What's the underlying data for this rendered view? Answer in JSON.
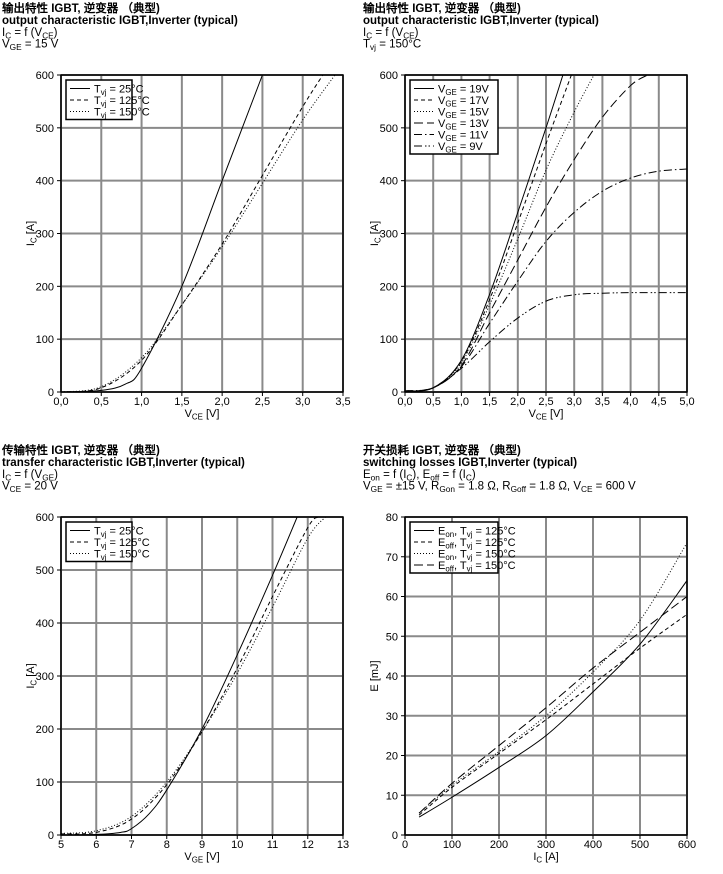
{
  "chart_data": [
    {
      "type": "line",
      "title": "输出特性 IGBT, 逆变器 （典型)",
      "subtitle": "output characteristic IGBT,Inverter (typical)",
      "conditions": [
        [
          "I",
          "C",
          " = f (V",
          "CE",
          ")"
        ],
        [
          "V",
          "GE",
          " = 15 V"
        ]
      ],
      "xlabel": [
        "V",
        "CE",
        " [V]"
      ],
      "ylabel": [
        "I",
        "C",
        " [A]"
      ],
      "xlim": [
        0,
        3.5
      ],
      "ylim": [
        0,
        600
      ],
      "xticks": [
        0,
        0.5,
        1,
        1.5,
        2,
        2.5,
        3,
        3.5
      ],
      "xtick_labels": [
        "0,0",
        "0,5",
        "1,0",
        "1,5",
        "2,0",
        "2,5",
        "3,0",
        "3,5"
      ],
      "yticks": [
        0,
        100,
        200,
        300,
        400,
        500,
        600
      ],
      "ytick_labels": [
        "0",
        "100",
        "200",
        "300",
        "400",
        "500",
        "600"
      ],
      "grid": true,
      "legend_position": "top-left",
      "series": [
        {
          "name": [
            "T",
            "vj",
            " = 25°C"
          ],
          "style": "solid",
          "points": [
            [
              0,
              0
            ],
            [
              0.5,
              3
            ],
            [
              0.8,
              15
            ],
            [
              1,
              45
            ],
            [
              1.5,
              200
            ],
            [
              2,
              400
            ],
            [
              2.5,
              600
            ]
          ]
        },
        {
          "name": [
            "T",
            "vj",
            " = 125°C"
          ],
          "style": "dashed",
          "points": [
            [
              0,
              0
            ],
            [
              0.5,
              8
            ],
            [
              1,
              60
            ],
            [
              1.5,
              165
            ],
            [
              2,
              280
            ],
            [
              2.5,
              410
            ],
            [
              3,
              540
            ],
            [
              3.25,
              600
            ]
          ]
        },
        {
          "name": [
            "T",
            "vj",
            " = 150°C"
          ],
          "style": "dotted",
          "points": [
            [
              0,
              0
            ],
            [
              0.5,
              10
            ],
            [
              1,
              65
            ],
            [
              1.5,
              165
            ],
            [
              2,
              275
            ],
            [
              2.5,
              395
            ],
            [
              3,
              515
            ],
            [
              3.4,
              600
            ]
          ]
        }
      ]
    },
    {
      "type": "line",
      "title": "输出特性 IGBT, 逆变器 （典型)",
      "subtitle": "output characteristic IGBT,Inverter (typical)",
      "conditions": [
        [
          "I",
          "C",
          " = f (V",
          "CE",
          ")"
        ],
        [
          "T",
          "vj",
          " = 150°C"
        ]
      ],
      "xlabel": [
        "V",
        "CE",
        " [V]"
      ],
      "ylabel": [
        "I",
        "C",
        " [A]"
      ],
      "xlim": [
        0,
        5
      ],
      "ylim": [
        0,
        600
      ],
      "xticks": [
        0,
        0.5,
        1,
        1.5,
        2,
        2.5,
        3,
        3.5,
        4,
        4.5,
        5
      ],
      "xtick_labels": [
        "0,0",
        "0,5",
        "1,0",
        "1,5",
        "2,0",
        "2,5",
        "3,0",
        "3,5",
        "4,0",
        "4,5",
        "5,0"
      ],
      "yticks": [
        0,
        100,
        200,
        300,
        400,
        500,
        600
      ],
      "ytick_labels": [
        "0",
        "100",
        "200",
        "300",
        "400",
        "500",
        "600"
      ],
      "grid": true,
      "legend_position": "top-left",
      "series": [
        {
          "name": [
            "V",
            "GE",
            " = 19V"
          ],
          "style": "solid",
          "points": [
            [
              0,
              2
            ],
            [
              0.5,
              8
            ],
            [
              1,
              60
            ],
            [
              1.5,
              185
            ],
            [
              2,
              340
            ],
            [
              2.5,
              500
            ],
            [
              2.8,
              600
            ]
          ]
        },
        {
          "name": [
            "V",
            "GE",
            " = 17V"
          ],
          "style": "dashed",
          "points": [
            [
              0,
              2
            ],
            [
              0.5,
              8
            ],
            [
              1,
              58
            ],
            [
              1.5,
              175
            ],
            [
              2,
              320
            ],
            [
              2.5,
              470
            ],
            [
              2.95,
              600
            ]
          ]
        },
        {
          "name": [
            "V",
            "GE",
            " = 15V"
          ],
          "style": "dotted",
          "points": [
            [
              0,
              2
            ],
            [
              0.5,
              8
            ],
            [
              1,
              55
            ],
            [
              1.5,
              165
            ],
            [
              2,
              290
            ],
            [
              2.5,
              420
            ],
            [
              3,
              530
            ],
            [
              3.35,
              600
            ]
          ]
        },
        {
          "name": [
            "V",
            "GE",
            " = 13V"
          ],
          "style": "longdash",
          "points": [
            [
              0,
              2
            ],
            [
              0.5,
              8
            ],
            [
              1,
              50
            ],
            [
              1.5,
              150
            ],
            [
              2,
              250
            ],
            [
              2.5,
              350
            ],
            [
              3,
              440
            ],
            [
              3.5,
              520
            ],
            [
              4,
              580
            ],
            [
              4.3,
              600
            ]
          ]
        },
        {
          "name": [
            "V",
            "GE",
            " = 11V"
          ],
          "style": "dashdot",
          "points": [
            [
              0,
              2
            ],
            [
              0.5,
              8
            ],
            [
              1,
              48
            ],
            [
              1.5,
              130
            ],
            [
              2,
              210
            ],
            [
              2.5,
              285
            ],
            [
              3,
              340
            ],
            [
              3.5,
              380
            ],
            [
              4,
              405
            ],
            [
              4.5,
              418
            ],
            [
              5,
              422
            ]
          ]
        },
        {
          "name": [
            "V",
            "GE",
            " = 9V"
          ],
          "style": "dashdotdot",
          "points": [
            [
              0,
              2
            ],
            [
              0.5,
              8
            ],
            [
              1,
              45
            ],
            [
              1.5,
              95
            ],
            [
              2,
              140
            ],
            [
              2.5,
              172
            ],
            [
              3,
              184
            ],
            [
              3.5,
              187
            ],
            [
              4,
              188
            ],
            [
              5,
              188
            ]
          ]
        }
      ]
    },
    {
      "type": "line",
      "title": "传输特性 IGBT, 逆变器 （典型)",
      "subtitle": "transfer characteristic IGBT,Inverter (typical)",
      "conditions": [
        [
          "I",
          "C",
          " = f (V",
          "GE",
          ")"
        ],
        [
          "V",
          "CE",
          " = 20 V"
        ]
      ],
      "xlabel": [
        "V",
        "GE",
        " [V]"
      ],
      "ylabel": [
        "I",
        "C",
        " [A]"
      ],
      "xlim": [
        5,
        13
      ],
      "ylim": [
        0,
        600
      ],
      "xticks": [
        5,
        6,
        7,
        8,
        9,
        10,
        11,
        12,
        13
      ],
      "xtick_labels": [
        "5",
        "6",
        "7",
        "8",
        "9",
        "10",
        "11",
        "12",
        "13"
      ],
      "yticks": [
        0,
        100,
        200,
        300,
        400,
        500,
        600
      ],
      "ytick_labels": [
        "0",
        "100",
        "200",
        "300",
        "400",
        "500",
        "600"
      ],
      "grid": true,
      "legend_position": "top-left",
      "series": [
        {
          "name": [
            "T",
            "vj",
            " = 25°C"
          ],
          "style": "solid",
          "points": [
            [
              5,
              0
            ],
            [
              6,
              1
            ],
            [
              6.7,
              5
            ],
            [
              7,
              12
            ],
            [
              7.5,
              40
            ],
            [
              8,
              85
            ],
            [
              9,
              200
            ],
            [
              10,
              340
            ],
            [
              11,
              490
            ],
            [
              11.7,
              600
            ]
          ]
        },
        {
          "name": [
            "T",
            "vj",
            " = 125°C"
          ],
          "style": "dashed",
          "points": [
            [
              5,
              2
            ],
            [
              6,
              5
            ],
            [
              7,
              30
            ],
            [
              8,
              95
            ],
            [
              9,
              195
            ],
            [
              10,
              315
            ],
            [
              11,
              450
            ],
            [
              12,
              580
            ],
            [
              12.3,
              600
            ]
          ]
        },
        {
          "name": [
            "T",
            "vj",
            " = 150°C"
          ],
          "style": "dotted",
          "points": [
            [
              5,
              3
            ],
            [
              6,
              8
            ],
            [
              7,
              35
            ],
            [
              8,
              100
            ],
            [
              9,
              195
            ],
            [
              10,
              305
            ],
            [
              11,
              430
            ],
            [
              12,
              560
            ],
            [
              12.5,
              600
            ]
          ]
        }
      ]
    },
    {
      "type": "line",
      "title": "开关损耗 IGBT, 逆变器 （典型)",
      "subtitle": "switching losses IGBT,Inverter (typical)",
      "conditions": [
        [
          "E",
          "on",
          " = f (I",
          "C",
          "), E",
          "off",
          " = f (I",
          "C",
          ")"
        ],
        [
          "V",
          "GE",
          " = ±15 V, R",
          "Gon",
          " = 1.8 Ω, R",
          "Goff",
          " = 1.8 Ω, V",
          "CE",
          " = 600 V"
        ]
      ],
      "xlabel": [
        "I",
        "C",
        " [A]"
      ],
      "ylabel": [
        "E [mJ]"
      ],
      "xlim": [
        0,
        600
      ],
      "ylim": [
        0,
        80
      ],
      "xticks": [
        0,
        100,
        200,
        300,
        400,
        500,
        600
      ],
      "xtick_labels": [
        "0",
        "100",
        "200",
        "300",
        "400",
        "500",
        "600"
      ],
      "yticks": [
        0,
        10,
        20,
        30,
        40,
        50,
        60,
        70,
        80
      ],
      "ytick_labels": [
        "0",
        "10",
        "20",
        "30",
        "40",
        "50",
        "60",
        "70",
        "80"
      ],
      "grid": true,
      "legend_position": "top-left",
      "series": [
        {
          "name": [
            "E",
            "on",
            ", T",
            "vj",
            " = 125°C"
          ],
          "style": "solid",
          "points": [
            [
              30,
              4.5
            ],
            [
              100,
              9.5
            ],
            [
              200,
              17
            ],
            [
              300,
              25
            ],
            [
              400,
              36
            ],
            [
              500,
              48
            ],
            [
              600,
              64
            ]
          ]
        },
        {
          "name": [
            "E",
            "off",
            ", T",
            "vj",
            " = 125°C"
          ],
          "style": "dashed",
          "points": [
            [
              30,
              5
            ],
            [
              100,
              12
            ],
            [
              200,
              20.5
            ],
            [
              300,
              29
            ],
            [
              400,
              38
            ],
            [
              500,
              47
            ],
            [
              600,
              55.5
            ]
          ]
        },
        {
          "name": [
            "E",
            "on",
            ", T",
            "vj",
            " = 150°C"
          ],
          "style": "dotted",
          "points": [
            [
              30,
              5.5
            ],
            [
              100,
              12.5
            ],
            [
              200,
              21
            ],
            [
              300,
              30
            ],
            [
              400,
              41
            ],
            [
              500,
              54
            ],
            [
              600,
              73.5
            ]
          ]
        },
        {
          "name": [
            "E",
            "off",
            ", T",
            "vj",
            " = 150°C"
          ],
          "style": "longdash",
          "points": [
            [
              30,
              5.5
            ],
            [
              100,
              13
            ],
            [
              200,
              22.5
            ],
            [
              300,
              32
            ],
            [
              400,
              42
            ],
            [
              500,
              51
            ],
            [
              600,
              60
            ]
          ]
        }
      ]
    }
  ]
}
